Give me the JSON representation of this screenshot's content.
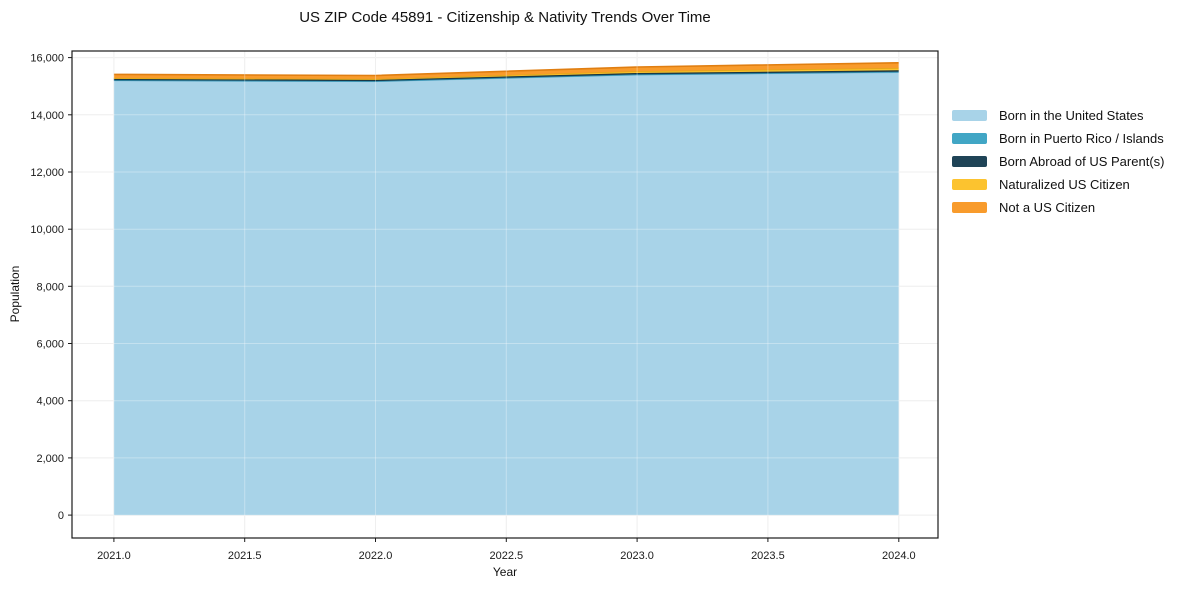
{
  "chart_data": {
    "type": "area",
    "stacked": true,
    "title": "US ZIP Code 45891 - Citizenship & Nativity Trends Over Time",
    "xlabel": "Year",
    "ylabel": "Population",
    "x": [
      2021,
      2022,
      2023,
      2024
    ],
    "series": [
      {
        "name": "Born in the United States",
        "color": "#a8d3e8",
        "line_color": "#86bfda",
        "values": [
          15200,
          15170,
          15400,
          15490
        ]
      },
      {
        "name": "Born in Puerto Rico / Islands",
        "color": "#41a6c5",
        "line_color": "#3191b1",
        "values": [
          10,
          8,
          12,
          14
        ]
      },
      {
        "name": "Born Abroad of US Parent(s)",
        "color": "#1f4457",
        "line_color": "#16333f",
        "values": [
          45,
          42,
          48,
          52
        ]
      },
      {
        "name": "Naturalized US Citizen",
        "color": "#fcc32f",
        "line_color": "#e2a816",
        "values": [
          30,
          35,
          62,
          78
        ]
      },
      {
        "name": "Not a US Citizen",
        "color": "#f89b2c",
        "line_color": "#e07e11",
        "values": [
          125,
          120,
          150,
          185
        ]
      }
    ],
    "xlim": [
      2020.84,
      2024.15
    ],
    "ylim": [
      -800,
      16230
    ],
    "xticks": {
      "values": [
        2021.0,
        2021.5,
        2022.0,
        2022.5,
        2023.0,
        2023.5,
        2024.0
      ],
      "labels": [
        "2021.0",
        "2021.5",
        "2022.0",
        "2022.5",
        "2023.0",
        "2023.5",
        "2024.0"
      ]
    },
    "yticks": {
      "values": [
        0,
        2000,
        4000,
        6000,
        8000,
        10000,
        12000,
        14000,
        16000
      ],
      "labels": [
        "0",
        "2,000",
        "4,000",
        "6,000",
        "8,000",
        "10,000",
        "12,000",
        "14,000",
        "16,000"
      ]
    },
    "grid": true,
    "legend_position": "right"
  },
  "colors": {
    "background": "#ffffff",
    "grid": "#e8e8e8",
    "grid_overlay": "rgba(255,255,255,0.32)",
    "spine": "#1a1a1a",
    "tick": "#1a1a1a",
    "text": "#111111"
  }
}
